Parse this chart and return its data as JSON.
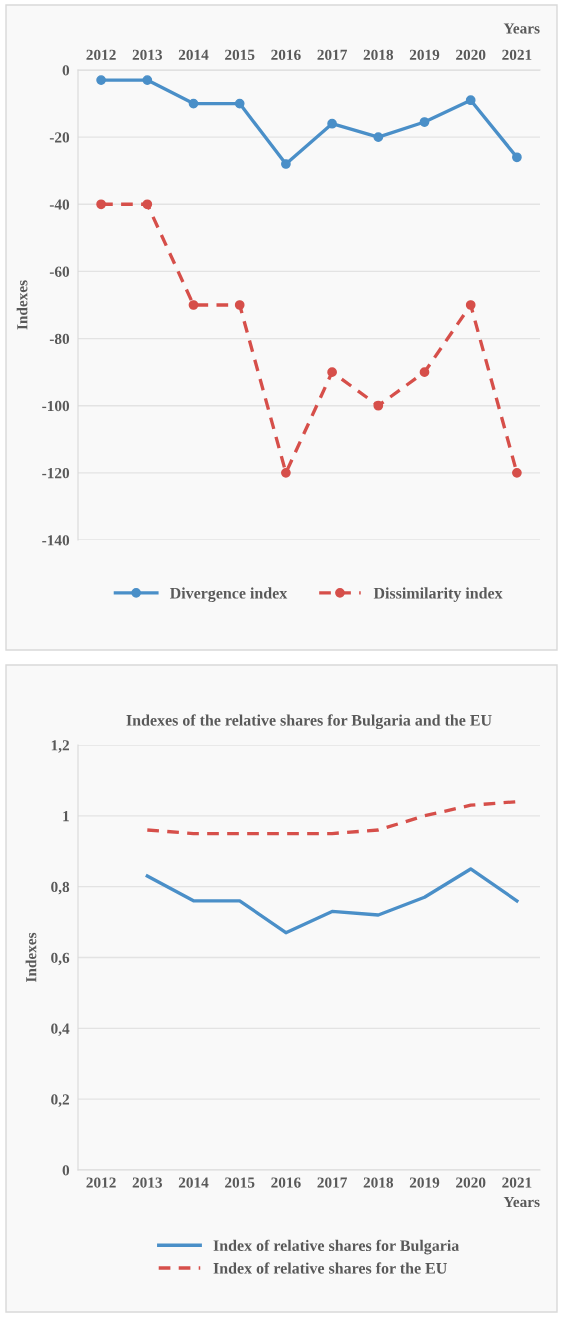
{
  "chart_data": [
    {
      "type": "line",
      "categories": [
        "2012",
        "2013",
        "2014",
        "2015",
        "2016",
        "2017",
        "2018",
        "2019",
        "2020",
        "2021"
      ],
      "xlabel": "Years",
      "ylabel": "Indexes",
      "ylim": [
        -140,
        0
      ],
      "yticks": [
        -140,
        -120,
        -100,
        -80,
        -60,
        -40,
        -20,
        0
      ],
      "grid": "y",
      "legend": "bottom",
      "series": [
        {
          "name": "Divergence index",
          "color": "#4a8fc8",
          "marker": "circle",
          "line_style": "solid",
          "values": [
            -3,
            -3,
            -10,
            -10,
            -28,
            -16,
            -20,
            -15.5,
            -9,
            -26
          ]
        },
        {
          "name": "Dissimilarity index",
          "color": "#d64f4a",
          "marker": "circle",
          "line_style": "dashed",
          "values": [
            -40,
            -40,
            -70,
            -70,
            -120,
            -90,
            -100,
            -90,
            -70,
            -120
          ]
        }
      ]
    },
    {
      "type": "line",
      "title": "Indexes of the relative shares for Bulgaria and the EU",
      "categories": [
        "2012",
        "2013",
        "2014",
        "2015",
        "2016",
        "2017",
        "2018",
        "2019",
        "2020",
        "2021"
      ],
      "xlabel": "Years",
      "ylabel": "Indexes",
      "ylim": [
        0,
        1.2
      ],
      "yticks": [
        0,
        {
          "value": 0.2,
          "label": "0,2"
        },
        {
          "value": 0.4,
          "label": "0,4"
        },
        {
          "value": 0.6,
          "label": "0,6"
        },
        {
          "value": 0.8,
          "label": "0,8"
        },
        1,
        {
          "value": 1.2,
          "label": "1,2"
        }
      ],
      "grid": "y",
      "legend": "bottom",
      "series": [
        {
          "name": "Index of relative shares for Bulgaria",
          "color": "#4a8fc8",
          "marker": "none",
          "line_style": "solid",
          "values": [
            null,
            0.83,
            0.76,
            0.76,
            0.67,
            0.73,
            0.72,
            0.77,
            0.85,
            0.76
          ]
        },
        {
          "name": "Index of relative shares for the EU",
          "color": "#d64f4a",
          "marker": "none",
          "line_style": "dashed",
          "values": [
            null,
            0.96,
            0.95,
            0.95,
            0.95,
            0.95,
            0.96,
            1.0,
            1.03,
            1.04
          ]
        }
      ]
    }
  ]
}
